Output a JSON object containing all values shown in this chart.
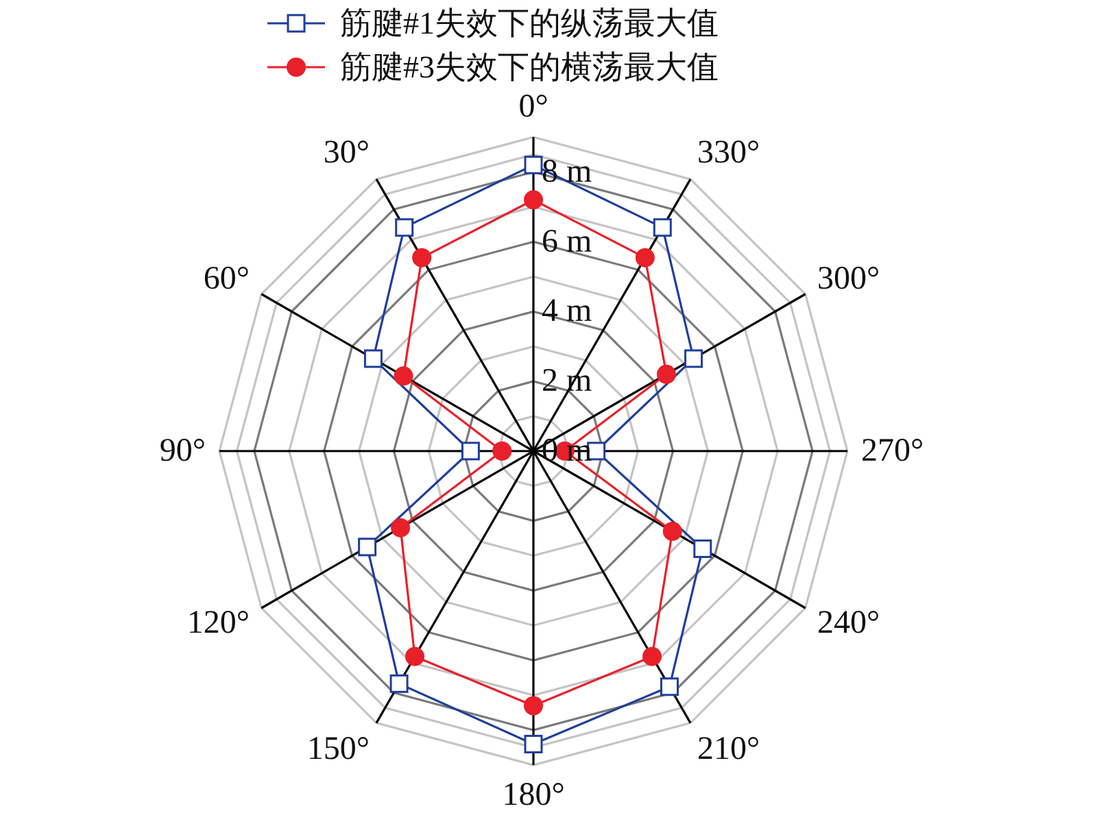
{
  "chart_data": {
    "type": "radar",
    "categories": [
      "0°",
      "330°",
      "300°",
      "270°",
      "240°",
      "210°",
      "180°",
      "150°",
      "120°",
      "90°",
      "60°",
      "30°"
    ],
    "series": [
      {
        "name": "筋腱#1失效下的纵荡最大值",
        "color": "#1f3f9a",
        "marker": "square",
        "values": [
          8.2,
          7.4,
          5.3,
          1.8,
          5.6,
          7.8,
          8.4,
          7.7,
          5.5,
          1.8,
          5.3,
          7.4
        ]
      },
      {
        "name": "筋腱#3失效下的横荡最大值",
        "color": "#e8202a",
        "marker": "circle",
        "values": [
          7.2,
          6.4,
          4.4,
          0.9,
          4.6,
          6.8,
          7.3,
          6.8,
          4.4,
          0.9,
          4.3,
          6.4
        ]
      }
    ],
    "ylim": [
      0,
      9
    ],
    "yticks": [
      {
        "value": 0,
        "label": "0 m"
      },
      {
        "value": 2,
        "label": "2 m"
      },
      {
        "value": 4,
        "label": "4 m"
      },
      {
        "value": 6,
        "label": "6 m"
      },
      {
        "value": 8,
        "label": "8 m"
      }
    ],
    "grid": true,
    "legend": "top"
  }
}
